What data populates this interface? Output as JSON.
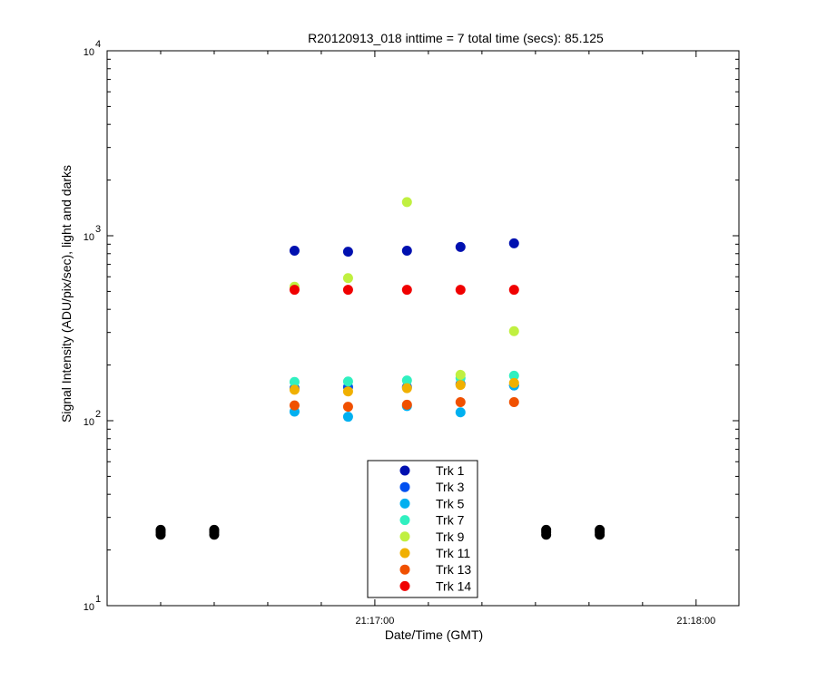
{
  "chart_data": {
    "type": "scatter",
    "title": "R20120913_018 inttime = 7 total time (secs): 85.125",
    "xlabel": "Date/Time (GMT)",
    "ylabel": "Signal Intensity (ADU/pix/sec), light and darks",
    "y_scale": "log",
    "ylim": [
      10,
      10000
    ],
    "xlim": [
      "21:16:10",
      "21:18:08"
    ],
    "x_ticks": [
      "21:17:00",
      "21:18:00"
    ],
    "y_ticks": [
      {
        "value": 10,
        "base": "10",
        "exp": "1"
      },
      {
        "value": 100,
        "base": "10",
        "exp": "2"
      },
      {
        "value": 1000,
        "base": "10",
        "exp": "3"
      },
      {
        "value": 10000,
        "base": "10",
        "exp": "4"
      }
    ],
    "grid": false,
    "legend_position": "bottom-center",
    "series": [
      {
        "name": "Trk 1",
        "color": "#0010b0",
        "points": [
          [
            "21:16:45",
            830
          ],
          [
            "21:16:55",
            820
          ],
          [
            "21:17:06",
            830
          ],
          [
            "21:17:16",
            870
          ],
          [
            "21:17:26",
            910
          ]
        ]
      },
      {
        "name": "Trk 3",
        "color": "#0050f0",
        "points": [
          [
            "21:16:45",
            150
          ],
          [
            "21:16:55",
            152
          ],
          [
            "21:17:06",
            152
          ],
          [
            "21:17:16",
            158
          ],
          [
            "21:17:26",
            155
          ]
        ]
      },
      {
        "name": "Trk 5",
        "color": "#00b0f0",
        "points": [
          [
            "21:16:45",
            112
          ],
          [
            "21:16:55",
            105
          ],
          [
            "21:17:06",
            120
          ],
          [
            "21:17:16",
            111
          ],
          [
            "21:17:26",
            155
          ]
        ]
      },
      {
        "name": "Trk 7",
        "color": "#30f0c0",
        "points": [
          [
            "21:16:45",
            162
          ],
          [
            "21:16:55",
            163
          ],
          [
            "21:17:06",
            165
          ],
          [
            "21:17:16",
            170
          ],
          [
            "21:17:26",
            175
          ]
        ]
      },
      {
        "name": "Trk 9",
        "color": "#c0f040",
        "points": [
          [
            "21:16:45",
            530
          ],
          [
            "21:16:55",
            590
          ],
          [
            "21:17:06",
            1520
          ],
          [
            "21:17:16",
            177
          ],
          [
            "21:17:26",
            305
          ]
        ]
      },
      {
        "name": "Trk 11",
        "color": "#f0b000",
        "points": [
          [
            "21:16:45",
            147
          ],
          [
            "21:16:55",
            144
          ],
          [
            "21:17:06",
            150
          ],
          [
            "21:17:16",
            156
          ],
          [
            "21:17:26",
            160
          ]
        ]
      },
      {
        "name": "Trk 13",
        "color": "#f05000",
        "points": [
          [
            "21:16:45",
            121
          ],
          [
            "21:16:55",
            119
          ],
          [
            "21:17:06",
            122
          ],
          [
            "21:17:16",
            126
          ],
          [
            "21:17:26",
            126
          ]
        ]
      },
      {
        "name": "Trk 14",
        "color": "#f00000",
        "points": [
          [
            "21:16:45",
            510
          ],
          [
            "21:16:55",
            510
          ],
          [
            "21:17:06",
            510
          ],
          [
            "21:17:16",
            510
          ],
          [
            "21:17:26",
            510
          ]
        ]
      }
    ],
    "darks": {
      "color": "#000000",
      "points": [
        [
          "21:16:20",
          24.2
        ],
        [
          "21:16:20",
          25.0
        ],
        [
          "21:16:20",
          25.7
        ],
        [
          "21:16:30",
          24.2
        ],
        [
          "21:16:30",
          25.0
        ],
        [
          "21:16:30",
          25.7
        ],
        [
          "21:17:32",
          24.2
        ],
        [
          "21:17:32",
          25.0
        ],
        [
          "21:17:32",
          25.7
        ],
        [
          "21:17:42",
          24.2
        ],
        [
          "21:17:42",
          25.0
        ],
        [
          "21:17:42",
          25.7
        ]
      ]
    }
  }
}
